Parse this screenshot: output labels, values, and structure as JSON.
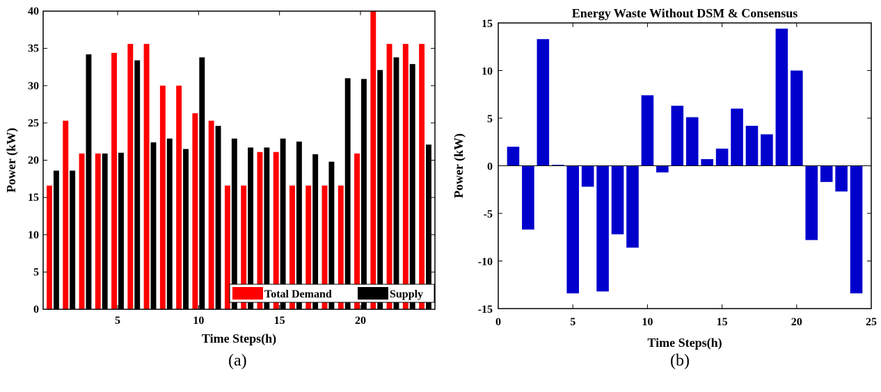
{
  "captions": {
    "left": "(a)",
    "right": "(b)"
  },
  "chart_data": [
    {
      "type": "bar",
      "title": "",
      "xlabel": "Time Steps(h)",
      "ylabel": "Power (kW)",
      "x": [
        1,
        2,
        3,
        4,
        5,
        6,
        7,
        8,
        9,
        10,
        11,
        12,
        13,
        14,
        15,
        16,
        17,
        18,
        19,
        20,
        21,
        22,
        23,
        24
      ],
      "xlim": [
        0.4,
        24.6
      ],
      "ylim": [
        0,
        40
      ],
      "xticks": [
        5,
        10,
        15,
        20
      ],
      "yticks": [
        0,
        5,
        10,
        15,
        20,
        25,
        30,
        35,
        40
      ],
      "legend": "bottom-right",
      "series": [
        {
          "name": "Total Demand",
          "color": "#ff0000",
          "values": [
            16.6,
            25.3,
            20.9,
            20.9,
            34.4,
            35.6,
            35.6,
            30.0,
            30.0,
            26.3,
            25.3,
            16.6,
            16.6,
            21.1,
            21.1,
            16.6,
            16.6,
            16.6,
            16.6,
            20.9,
            40.0,
            35.6,
            35.6,
            35.6
          ]
        },
        {
          "name": "Supply",
          "color": "#000000",
          "values": [
            18.6,
            18.6,
            34.2,
            20.9,
            21.0,
            33.4,
            22.4,
            22.9,
            21.5,
            33.8,
            24.6,
            22.9,
            21.7,
            21.7,
            22.9,
            22.5,
            20.8,
            19.8,
            31.0,
            30.9,
            32.1,
            33.8,
            32.9,
            22.1
          ]
        }
      ]
    },
    {
      "type": "bar",
      "title": "Energy Waste Without DSM & Consensus",
      "xlabel": "Time Steps(h)",
      "ylabel": "Power (kW)",
      "x": [
        1,
        2,
        3,
        4,
        5,
        6,
        7,
        8,
        9,
        10,
        11,
        12,
        13,
        14,
        15,
        16,
        17,
        18,
        19,
        20,
        21,
        22,
        23,
        24
      ],
      "xlim": [
        0,
        25
      ],
      "ylim": [
        -15,
        15
      ],
      "xticks": [
        0,
        5,
        10,
        15,
        20,
        25
      ],
      "yticks": [
        -15,
        -10,
        -5,
        0,
        5,
        10,
        15
      ],
      "series": [
        {
          "name": "",
          "color": "#0000cc",
          "values": [
            2.0,
            -6.7,
            13.3,
            0.1,
            -13.4,
            -2.2,
            -13.2,
            -7.2,
            -8.6,
            7.4,
            -0.7,
            6.3,
            5.1,
            0.7,
            1.8,
            6.0,
            4.2,
            3.3,
            14.4,
            10.0,
            -7.8,
            -1.7,
            -2.7,
            -13.4
          ]
        }
      ]
    }
  ]
}
